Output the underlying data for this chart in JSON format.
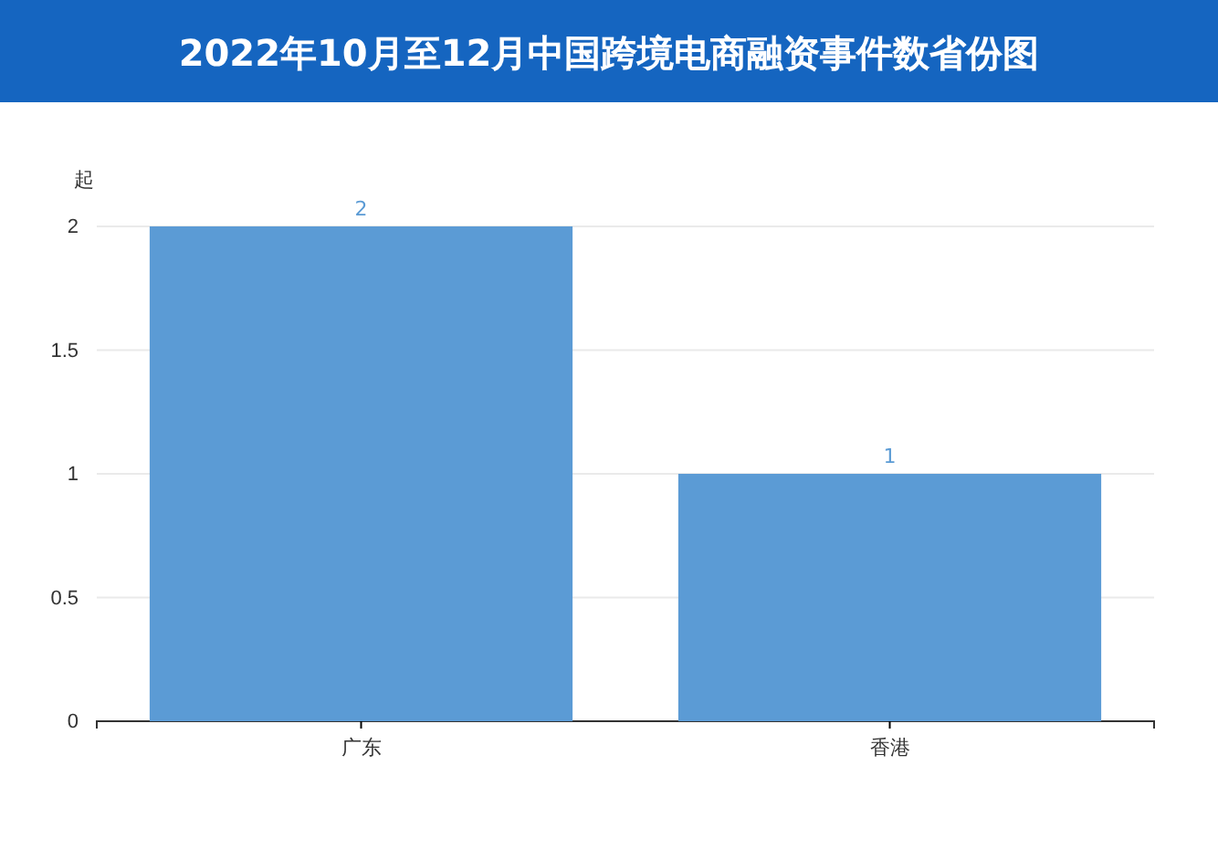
{
  "chart_data": {
    "type": "bar",
    "title": "2022年10月至12月中国跨境电商融资事件数省份图",
    "ylabel": "起",
    "categories": [
      "广东",
      "香港"
    ],
    "values": [
      2,
      1
    ],
    "color": "#5b9bd5",
    "ylim": [
      0,
      2
    ],
    "yticks": [
      0,
      0.5,
      1,
      1.5,
      2
    ],
    "grid": "y",
    "data_labels": true
  }
}
